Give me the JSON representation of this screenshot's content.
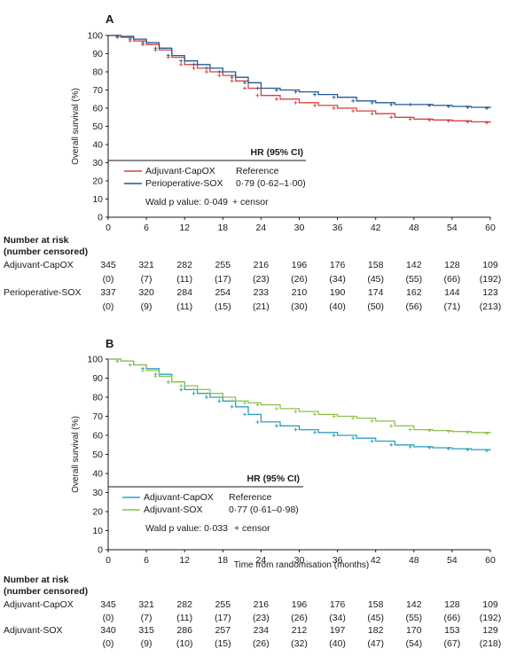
{
  "chart_data": [
    {
      "type": "line",
      "panel_label": "A",
      "ylabel": "Overall survival (%)",
      "xlabel": "",
      "xlim": [
        0,
        60
      ],
      "ylim": [
        0,
        100
      ],
      "xticks": [
        0,
        6,
        12,
        18,
        24,
        30,
        36,
        42,
        48,
        54,
        60
      ],
      "yticks": [
        0,
        10,
        20,
        30,
        40,
        50,
        60,
        70,
        80,
        90,
        100
      ],
      "legend": {
        "header": "HR (95% CI)",
        "entries": [
          {
            "name": "Adjuvant-CapOX",
            "hr": "Reference",
            "color": "#d9403f"
          },
          {
            "name": "Perioperative-SOX",
            "hr": "0·79 (0·62–1·00)",
            "color": "#1f5a94"
          }
        ],
        "pvalue": "Wald p value: 0·049",
        "censor": "+ censor"
      },
      "series": [
        {
          "name": "Adjuvant-CapOX",
          "color": "#d9403f",
          "x": [
            0,
            2,
            4,
            6,
            8,
            10,
            12,
            14,
            16,
            18,
            20,
            22,
            24,
            27,
            30,
            33,
            36,
            39,
            42,
            45,
            48,
            51,
            54,
            57,
            60
          ],
          "y": [
            100,
            99,
            97,
            95,
            92,
            88,
            84,
            82,
            80,
            78,
            75,
            71,
            67,
            65,
            63,
            61.5,
            60,
            58.5,
            57,
            55,
            54,
            53.5,
            53,
            52.5,
            52
          ]
        },
        {
          "name": "Perioperative-SOX",
          "color": "#1f5a94",
          "x": [
            0,
            2,
            4,
            6,
            8,
            10,
            12,
            14,
            16,
            18,
            20,
            22,
            24,
            27,
            30,
            33,
            36,
            39,
            42,
            45,
            48,
            51,
            54,
            57,
            60
          ],
          "y": [
            100,
            99.5,
            98,
            96,
            93,
            89,
            86,
            84,
            82,
            80,
            77,
            74,
            71,
            70,
            69,
            67.5,
            66,
            64,
            63,
            62,
            62,
            61.5,
            61,
            60.5,
            60
          ]
        }
      ],
      "risk_table": {
        "header_line1": "Number at risk",
        "header_line2": "(number censored)",
        "rows": [
          {
            "name": "Adjuvant-CapOX",
            "at_risk": [
              "345",
              "321",
              "282",
              "255",
              "216",
              "196",
              "176",
              "158",
              "142",
              "128",
              "109"
            ],
            "censored": [
              "(0)",
              "(7)",
              "(11)",
              "(17)",
              "(23)",
              "(26)",
              "(34)",
              "(45)",
              "(55)",
              "(66)",
              "(192)"
            ]
          },
          {
            "name": "Perioperative-SOX",
            "at_risk": [
              "337",
              "320",
              "284",
              "254",
              "233",
              "210",
              "190",
              "174",
              "162",
              "144",
              "123"
            ],
            "censored": [
              "(0)",
              "(9)",
              "(11)",
              "(15)",
              "(21)",
              "(30)",
              "(40)",
              "(50)",
              "(56)",
              "(71)",
              "(213)"
            ]
          }
        ]
      }
    },
    {
      "type": "line",
      "panel_label": "B",
      "ylabel": "Overall survival (%)",
      "xlabel": "Time from randomisation (months)",
      "xlim": [
        0,
        60
      ],
      "ylim": [
        0,
        100
      ],
      "xticks": [
        0,
        6,
        12,
        18,
        24,
        30,
        36,
        42,
        48,
        54,
        60
      ],
      "yticks": [
        0,
        10,
        20,
        30,
        40,
        50,
        60,
        70,
        80,
        90,
        100
      ],
      "legend": {
        "header": "HR (95% CI)",
        "entries": [
          {
            "name": "Adjuvant-CapOX",
            "hr": "Reference",
            "color": "#2a9fc4"
          },
          {
            "name": "Adjuvant-SOX",
            "hr": "0·77 (0·61–0·98)",
            "color": "#8fc24a"
          }
        ],
        "pvalue": "Wald p value: 0·033",
        "censor": "+ censor"
      },
      "series": [
        {
          "name": "Adjuvant-CapOX",
          "color": "#2a9fc4",
          "x": [
            0,
            2,
            4,
            6,
            8,
            10,
            12,
            14,
            16,
            18,
            20,
            22,
            24,
            27,
            30,
            33,
            36,
            39,
            42,
            45,
            48,
            51,
            54,
            57,
            60
          ],
          "y": [
            100,
            99,
            97,
            95,
            92,
            88,
            84,
            82,
            80,
            78,
            75,
            71,
            67,
            65,
            63,
            61.5,
            60,
            58.5,
            57,
            55,
            54,
            53.5,
            53,
            52.5,
            52
          ]
        },
        {
          "name": "Adjuvant-SOX",
          "color": "#8fc24a",
          "x": [
            0,
            2,
            4,
            6,
            8,
            10,
            12,
            14,
            16,
            18,
            20,
            22,
            24,
            27,
            30,
            33,
            36,
            39,
            42,
            45,
            48,
            51,
            54,
            57,
            60
          ],
          "y": [
            100,
            99,
            97,
            94,
            91,
            88,
            86,
            84,
            82,
            80,
            78,
            77,
            76,
            74,
            72.5,
            71,
            70,
            69,
            67.5,
            65,
            63,
            62.5,
            62,
            61.5,
            61
          ]
        }
      ],
      "risk_table": {
        "header_line1": "Number at risk",
        "header_line2": "(number censored)",
        "rows": [
          {
            "name": "Adjuvant-CapOX",
            "at_risk": [
              "345",
              "321",
              "282",
              "255",
              "216",
              "196",
              "176",
              "158",
              "142",
              "128",
              "109"
            ],
            "censored": [
              "(0)",
              "(7)",
              "(11)",
              "(17)",
              "(23)",
              "(26)",
              "(34)",
              "(45)",
              "(55)",
              "(66)",
              "(192)"
            ]
          },
          {
            "name": "Adjuvant-SOX",
            "at_risk": [
              "340",
              "315",
              "286",
              "257",
              "234",
              "212",
              "197",
              "182",
              "170",
              "153",
              "129"
            ],
            "censored": [
              "(0)",
              "(9)",
              "(10)",
              "(15)",
              "(26)",
              "(32)",
              "(40)",
              "(47)",
              "(54)",
              "(67)",
              "(218)"
            ]
          }
        ]
      }
    }
  ]
}
